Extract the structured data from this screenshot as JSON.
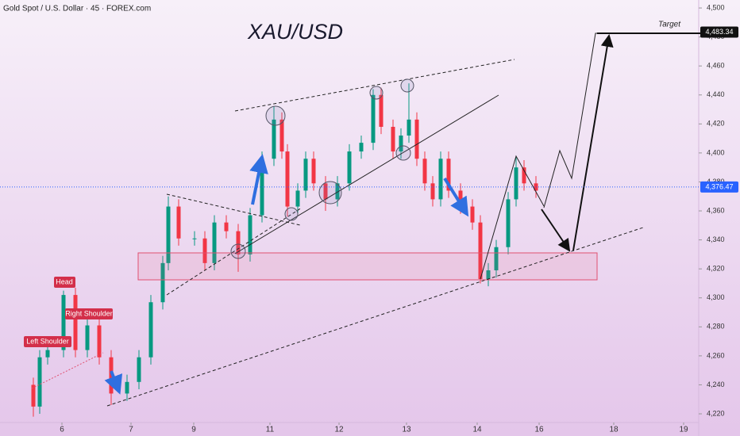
{
  "header": "Gold Spot / U.S. Dollar · 45 · FOREX.com",
  "chart_data": {
    "type": "candlestick",
    "title": "XAU/USD",
    "x": [
      10.5,
      12.5,
      15,
      20,
      23.75,
      27.5,
      31.25,
      35,
      40,
      43.75,
      47.5,
      51.25,
      53,
      56.25,
      61.25,
      64.5,
      67.5,
      71.25,
      75,
      78.75,
      82.5,
      86.25,
      88.75,
      90.5,
      93.75,
      96.25,
      98.75,
      102.5,
      106.25,
      110,
      113.75,
      117.5,
      120,
      123.75,
      126.25,
      128.75,
      131.25,
      133.75,
      136.25,
      138.75,
      141.25,
      145,
      148.75,
      151.25,
      153.75,
      156.25,
      160,
      162.5,
      165,
      168.75
    ],
    "open": [
      4240,
      4225,
      4259,
      4264,
      4302,
      4264,
      4281,
      4259,
      4234,
      4242,
      4259,
      4297,
      4324,
      4363,
      4341,
      4341,
      4324,
      4352,
      4346,
      4330,
      4357,
      4396,
      4423,
      4401,
      4363,
      4374,
      4396,
      4379,
      4368,
      4379,
      4401,
      4407,
      4440,
      4418,
      4401,
      4412,
      4423,
      4396,
      4379,
      4368,
      4396,
      4374,
      4363,
      4352,
      4313,
      4319,
      4335,
      4368,
      4390,
      4379
    ],
    "high": [
      4245,
      4264,
      4269,
      4305,
      4307,
      4286,
      4286,
      4264,
      4247,
      4264,
      4302,
      4329,
      4370,
      4368,
      4346,
      4346,
      4357,
      4357,
      4351,
      4362,
      4401,
      4432,
      4428,
      4406,
      4379,
      4401,
      4401,
      4384,
      4384,
      4406,
      4412,
      4444,
      4445,
      4423,
      4417,
      4448,
      4428,
      4401,
      4384,
      4401,
      4401,
      4379,
      4368,
      4357,
      4324,
      4340,
      4373,
      4398,
      4395,
      4384
    ],
    "low": [
      4218,
      4220,
      4254,
      4259,
      4259,
      4259,
      4254,
      4226,
      4229,
      4237,
      4254,
      4292,
      4319,
      4336,
      4336,
      4319,
      4319,
      4341,
      4318,
      4325,
      4352,
      4391,
      4396,
      4356,
      4358,
      4369,
      4374,
      4360,
      4363,
      4374,
      4396,
      4402,
      4413,
      4396,
      4396,
      4407,
      4391,
      4374,
      4363,
      4363,
      4369,
      4358,
      4347,
      4310,
      4308,
      4314,
      4330,
      4363,
      4374,
      4369
    ],
    "close": [
      4225,
      4259,
      4264,
      4302,
      4264,
      4281,
      4259,
      4234,
      4242,
      4259,
      4297,
      4324,
      4363,
      4341,
      4341,
      4324,
      4352,
      4346,
      4330,
      4357,
      4396,
      4423,
      4401,
      4363,
      4374,
      4396,
      4379,
      4368,
      4379,
      4401,
      4407,
      4440,
      4418,
      4401,
      4412,
      4423,
      4396,
      4379,
      4368,
      4396,
      4374,
      4363,
      4352,
      4313,
      4319,
      4335,
      4368,
      4390,
      4379,
      4374
    ],
    "up_color": "#089981",
    "down_color": "#f23645",
    "xlim": [
      0,
      220
    ],
    "xticks": [
      {
        "value": 19.5,
        "label": "6"
      },
      {
        "value": 41.25,
        "label": "7"
      },
      {
        "value": 61,
        "label": "9"
      },
      {
        "value": 85,
        "label": "11"
      },
      {
        "value": 106.75,
        "label": "12"
      },
      {
        "value": 128,
        "label": "13"
      },
      {
        "value": 150.25,
        "label": "14"
      },
      {
        "value": 169.75,
        "label": "16"
      },
      {
        "value": 193.25,
        "label": "18"
      },
      {
        "value": 215.25,
        "label": "19"
      }
    ],
    "ylim": [
      4214,
      4505.5
    ],
    "yticks": [
      {
        "value": 4220,
        "label": "4,220"
      },
      {
        "value": 4240,
        "label": "4,240"
      },
      {
        "value": 4260,
        "label": "4,260"
      },
      {
        "value": 4280,
        "label": "4,280"
      },
      {
        "value": 4300,
        "label": "4,300"
      },
      {
        "value": 4320,
        "label": "4,320"
      },
      {
        "value": 4340,
        "label": "4,340"
      },
      {
        "value": 4360,
        "label": "4,360"
      },
      {
        "value": 4380,
        "label": "4,380"
      },
      {
        "value": 4400,
        "label": "4,400"
      },
      {
        "value": 4420,
        "label": "4,420"
      },
      {
        "value": 4440,
        "label": "4,440"
      },
      {
        "value": 4460,
        "label": "4,460"
      },
      {
        "value": 4480,
        "label": "4,480"
      },
      {
        "value": 4500,
        "label": "4,500"
      }
    ],
    "last_price": {
      "value": 4376.47,
      "label": "4,376.47"
    },
    "target_price": {
      "value": 4483.34,
      "label": "4,483.34"
    },
    "annotations": {
      "head": "Head",
      "left_shoulder": "Left Shoulder",
      "right_shoulder": "Right Shoulder",
      "target": "Target"
    }
  }
}
